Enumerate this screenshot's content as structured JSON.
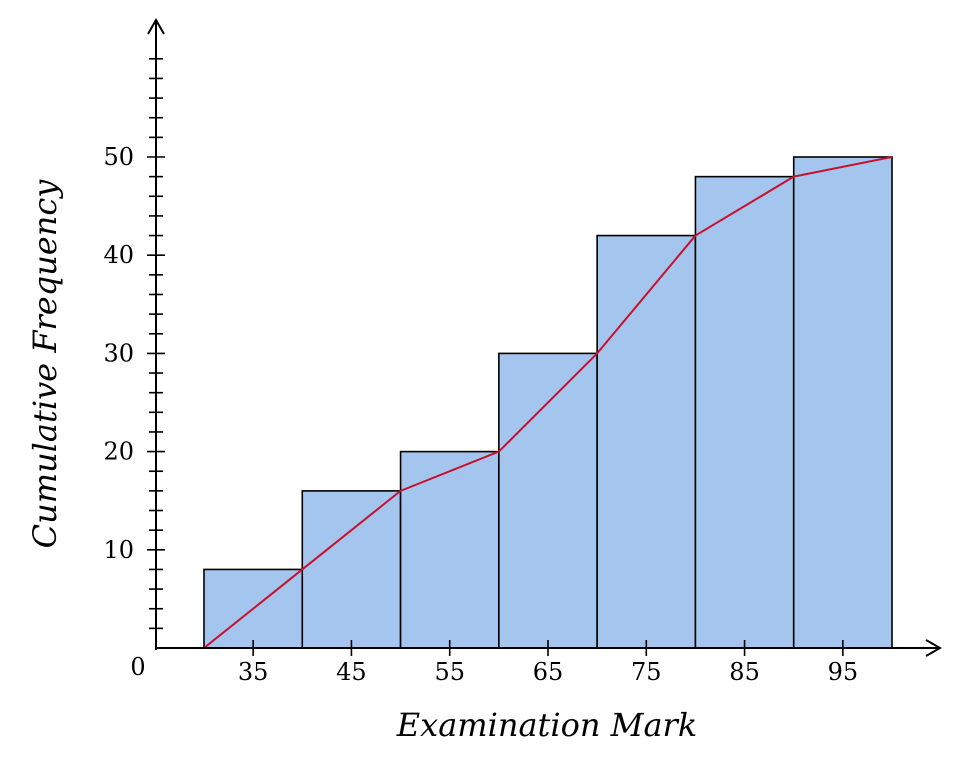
{
  "chart_data": {
    "type": "bar",
    "title": "",
    "xlabel": "Examination Mark",
    "ylabel": "Cumulative Frequency",
    "origin_label": "0",
    "bins": [
      {
        "from": 30,
        "to": 40,
        "mid": 35,
        "value": 8
      },
      {
        "from": 40,
        "to": 50,
        "mid": 45,
        "value": 16
      },
      {
        "from": 50,
        "to": 60,
        "mid": 55,
        "value": 20
      },
      {
        "from": 60,
        "to": 70,
        "mid": 65,
        "value": 30
      },
      {
        "from": 70,
        "to": 80,
        "mid": 75,
        "value": 42
      },
      {
        "from": 80,
        "to": 90,
        "mid": 85,
        "value": 48
      },
      {
        "from": 90,
        "to": 100,
        "mid": 95,
        "value": 50
      }
    ],
    "x_tick_labels": [
      "35",
      "45",
      "55",
      "65",
      "75",
      "85",
      "95"
    ],
    "y_tick_labels": [
      "10",
      "20",
      "30",
      "40",
      "50"
    ],
    "y_ticks": [
      10,
      20,
      30,
      40,
      50
    ],
    "line": {
      "x": [
        30,
        40,
        50,
        60,
        70,
        80,
        90,
        100
      ],
      "y": [
        0,
        8,
        16,
        20,
        30,
        42,
        48,
        50
      ]
    },
    "xlim": [
      30,
      100
    ],
    "ylim": [
      0,
      50
    ],
    "y_minor_tick_step": 2,
    "colors": {
      "bar_fill": "#a4c6ee",
      "bar_stroke": "#000000",
      "line": "#c8102e",
      "axis": "#000000"
    },
    "grid": false,
    "legend": "none"
  }
}
